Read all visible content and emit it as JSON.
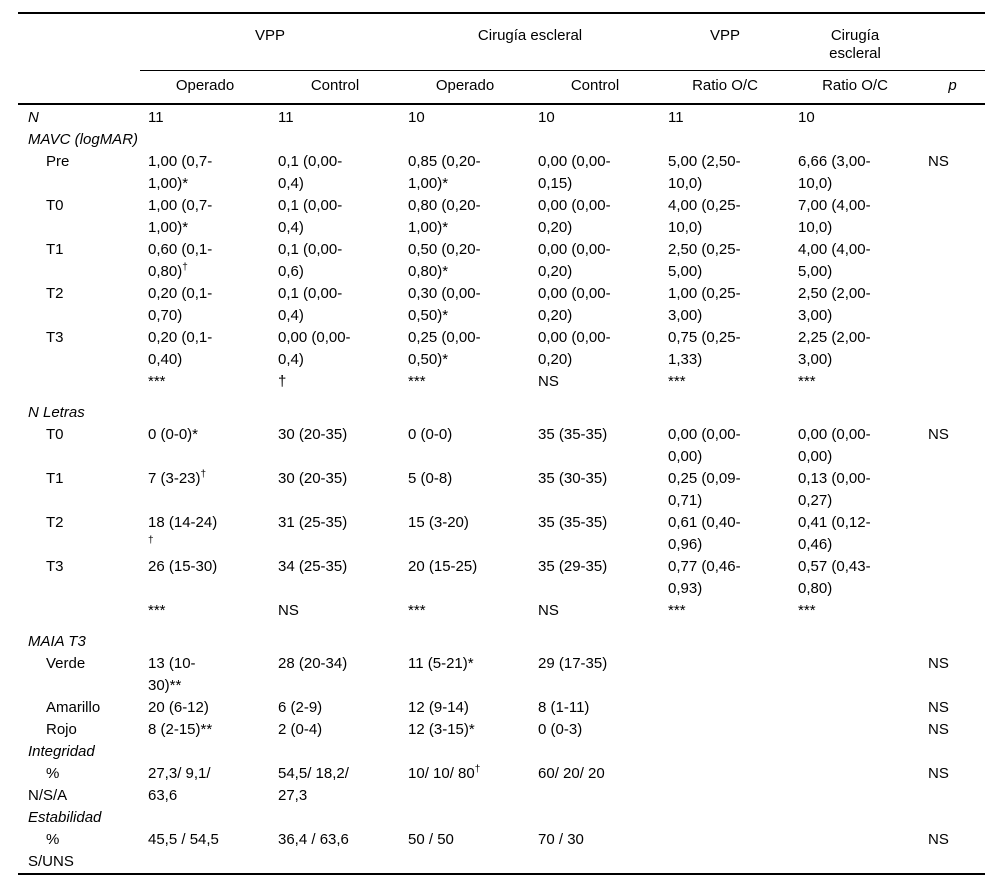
{
  "colors": {
    "text": "#000000",
    "rule": "#000000",
    "background": "#ffffff"
  },
  "table": {
    "groups": [
      "VPP",
      "Cirugía escleral",
      "VPP",
      "Cirugía\nescleral"
    ],
    "col_headers": [
      "",
      "Operado",
      "Control",
      "Operado",
      "Control",
      "Ratio O/C",
      "Ratio O/C",
      "p"
    ],
    "rows": [
      {
        "style": "section",
        "label": "N",
        "cells": [
          "11",
          "11",
          "10",
          "10",
          "11",
          "10"
        ],
        "p": ""
      },
      {
        "style": "section",
        "label": "MAVC (logMAR)",
        "cells": [
          "",
          "",
          "",
          "",
          "",
          ""
        ],
        "p": ""
      },
      {
        "style": "sub",
        "label": "Pre",
        "cells": [
          "1,00 (0,7-\n1,00)*",
          "0,1 (0,00-\n0,4)",
          "0,85 (0,20-\n1,00)*",
          "0,00 (0,00-\n0,15)",
          "5,00 (2,50-\n10,0)",
          "6,66 (3,00-\n10,0)"
        ],
        "p": "NS"
      },
      {
        "style": "sub",
        "label": "T0",
        "cells": [
          "1,00 (0,7-\n1,00)*",
          "0,1 (0,00-\n0,4)",
          "0,80 (0,20-\n1,00)*",
          "0,00 (0,00-\n0,20)",
          "4,00 (0,25-\n10,0)",
          "7,00 (4,00-\n10,0)"
        ],
        "p": ""
      },
      {
        "style": "sub",
        "label": "T1",
        "cells": [
          "0,60 (0,1-\n0,80)†",
          "0,1 (0,00-\n0,6)",
          "0,50 (0,20-\n0,80)*",
          "0,00 (0,00-\n0,20)",
          "2,50 (0,25-\n5,00)",
          "4,00 (4,00-\n5,00)"
        ],
        "p": ""
      },
      {
        "style": "sub",
        "label": "T2",
        "cells": [
          "0,20 (0,1-\n0,70)",
          "0,1 (0,00-\n0,4)",
          "0,30 (0,00-\n0,50)*",
          "0,00 (0,00-\n0,20)",
          "1,00 (0,25-\n3,00)",
          "2,50 (2,00-\n3,00)"
        ],
        "p": ""
      },
      {
        "style": "sub",
        "label": "T3",
        "cells": [
          "0,20 (0,1-\n0,40)",
          "0,00 (0,00-\n0,4)",
          "0,25 (0,00-\n0,50)*",
          "0,00 (0,00-\n0,20)",
          "0,75 (0,25-\n1,33)",
          "2,25 (2,00-\n3,00)"
        ],
        "p": ""
      },
      {
        "style": "stats",
        "label": "",
        "cells": [
          "***",
          "†",
          "***",
          "NS",
          "***",
          "***"
        ],
        "p": ""
      },
      {
        "style": "section",
        "label": "N Letras",
        "cells": [
          "",
          "",
          "",
          "",
          "",
          ""
        ],
        "p": ""
      },
      {
        "style": "sub",
        "label": "T0",
        "cells": [
          "0 (0-0)*",
          "30 (20-35)",
          "0 (0-0)",
          "35 (35-35)",
          "0,00 (0,00-\n0,00)",
          "0,00 (0,00-\n0,00)"
        ],
        "p": "NS"
      },
      {
        "style": "sub",
        "label": "T1",
        "cells": [
          "7 (3-23)†",
          "30 (20-35)",
          "5 (0-8)",
          "35 (30-35)",
          "0,25 (0,09-\n0,71)",
          "0,13 (0,00-\n0,27)"
        ],
        "p": ""
      },
      {
        "style": "sub",
        "label": "T2",
        "cells": [
          "18 (14-24)\n†",
          "31 (25-35)",
          "15 (3-20)",
          "35 (35-35)",
          "0,61 (0,40-\n0,96)",
          "0,41 (0,12-\n0,46)"
        ],
        "p": ""
      },
      {
        "style": "sub",
        "label": "T3",
        "cells": [
          "26 (15-30)",
          "34 (25-35)",
          "20 (15-25)",
          "35 (29-35)",
          "0,77 (0,46-\n0,93)",
          "0,57 (0,43-\n0,80)"
        ],
        "p": ""
      },
      {
        "style": "stats",
        "label": "",
        "cells": [
          "***",
          "NS",
          "***",
          "NS",
          "***",
          "***"
        ],
        "p": ""
      },
      {
        "style": "section",
        "label": "MAIA T3",
        "cells": [
          "",
          "",
          "",
          "",
          "",
          ""
        ],
        "p": ""
      },
      {
        "style": "sub",
        "label": "Verde",
        "cells": [
          "13 (10-\n30)**",
          "28 (20-34)",
          "11 (5-21)*",
          "29 (17-35)",
          "",
          ""
        ],
        "p": "NS"
      },
      {
        "style": "sub",
        "label": "Amarillo",
        "cells": [
          "20 (6-12)",
          "6 (2-9)",
          "12 (9-14)",
          "8 (1-11)",
          "",
          ""
        ],
        "p": "NS"
      },
      {
        "style": "sub",
        "label": "Rojo",
        "cells": [
          "8 (2-15)**",
          "2 (0-4)",
          "12 (3-15)*",
          "0 (0-3)",
          "",
          ""
        ],
        "p": "NS"
      },
      {
        "style": "section",
        "label": "Integridad",
        "cells": [
          "",
          "",
          "",
          "",
          "",
          ""
        ],
        "p": ""
      },
      {
        "style": "sub-wrap",
        "label": "%\nN/S/A",
        "cells": [
          "27,3/ 9,1/\n63,6",
          "54,5/ 18,2/\n27,3",
          "10/ 10/ 80†",
          "60/ 20/ 20",
          "",
          ""
        ],
        "p": "NS"
      },
      {
        "style": "section",
        "label": "Estabilidad",
        "cells": [
          "",
          "",
          "",
          "",
          "",
          ""
        ],
        "p": ""
      },
      {
        "style": "sub-wrap",
        "label": "%\nS/UNS",
        "cells": [
          "45,5 / 54,5",
          "36,4 / 63,6",
          "50 / 50",
          "70 / 30",
          "",
          ""
        ],
        "p": "NS"
      }
    ]
  }
}
